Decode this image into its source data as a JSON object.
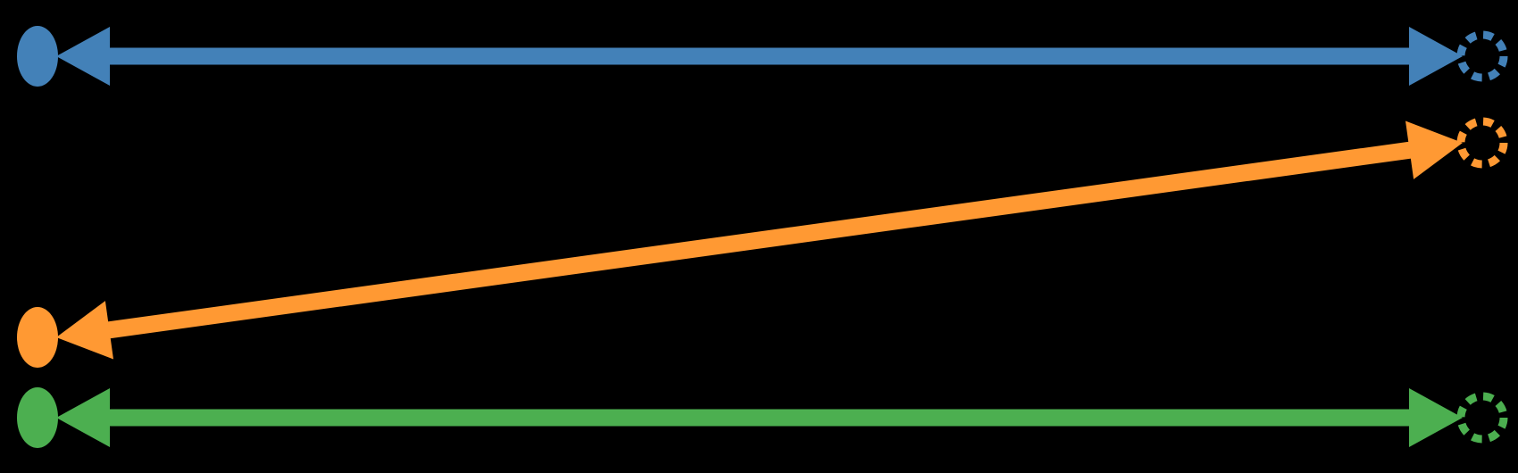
{
  "diagram": {
    "background": "#000000",
    "links": [
      {
        "name": "blue",
        "color": "#4381B8",
        "left_row": 1,
        "right_row": 1,
        "left_endpoint": "solid",
        "right_endpoint": "dashed",
        "arrowheads": "both"
      },
      {
        "name": "orange",
        "color": "#FF9933",
        "left_row": 3,
        "right_row": 2,
        "left_endpoint": "solid",
        "right_endpoint": "dashed",
        "arrowheads": "both"
      },
      {
        "name": "green",
        "color": "#4CAF50",
        "left_row": 4,
        "right_row": 4,
        "left_endpoint": "solid",
        "right_endpoint": "dashed",
        "arrowheads": "both"
      }
    ]
  }
}
